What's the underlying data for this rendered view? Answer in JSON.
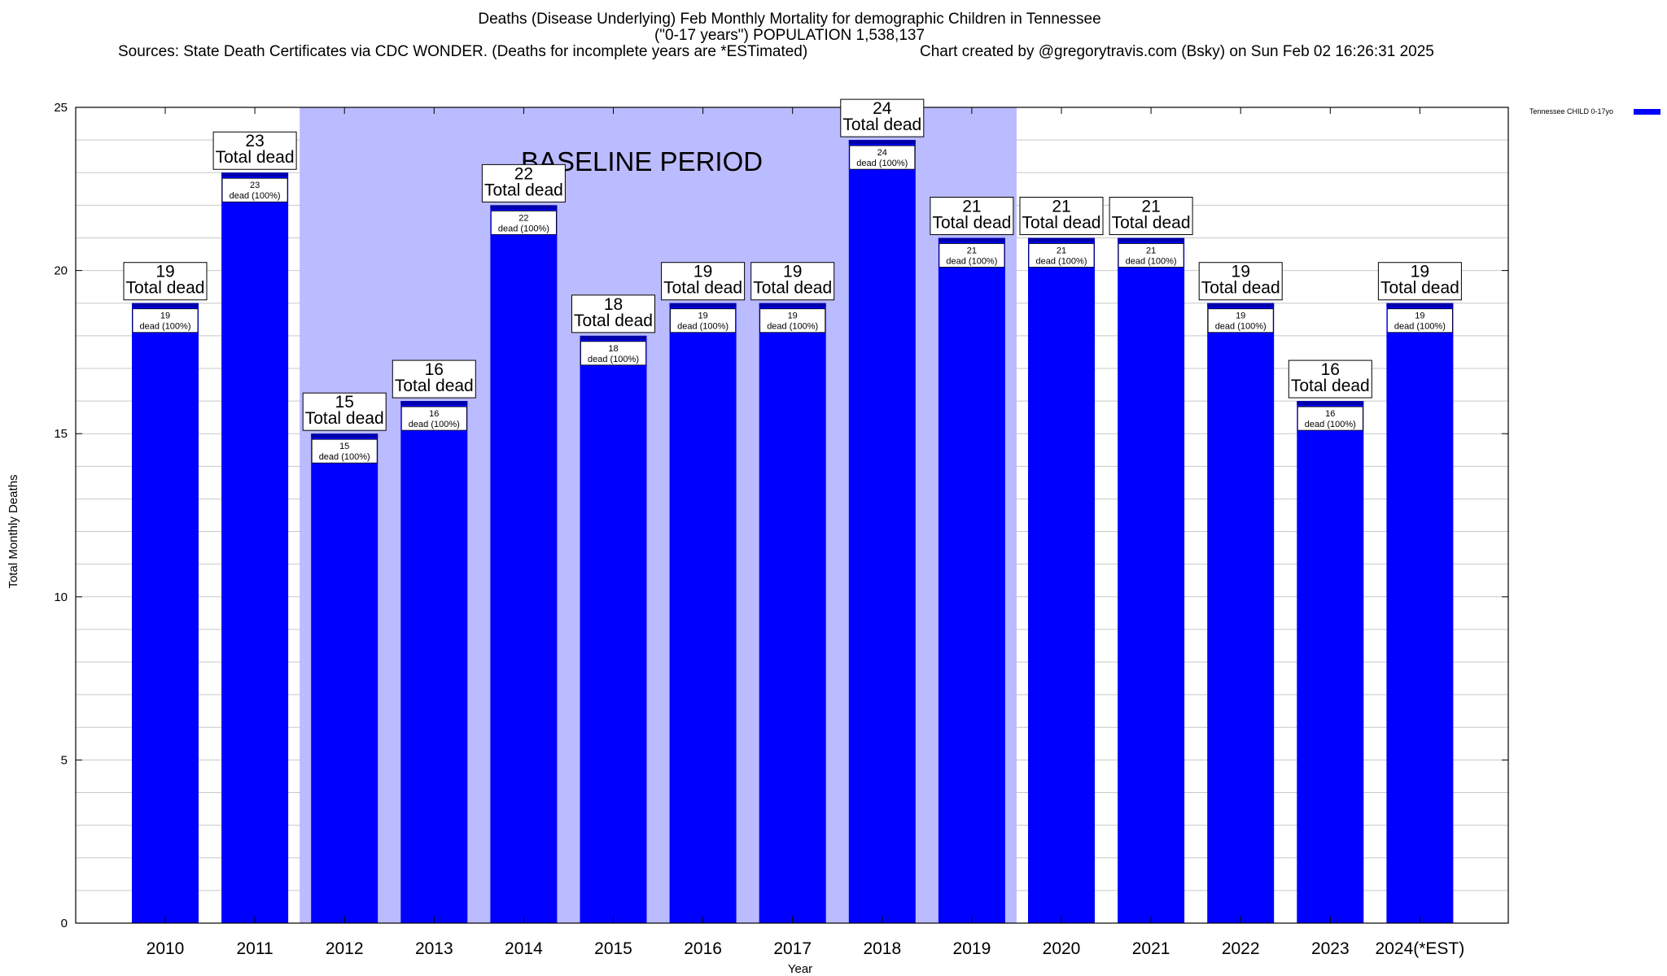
{
  "titles": {
    "line1": "Deaths (Disease Underlying) Feb Monthly Mortality for demographic Children in Tennessee",
    "line2": "(\"0-17 years\") POPULATION 1,538,137",
    "sources": "Sources: State Death Certificates via CDC WONDER. (Deaths for incomplete years are *ESTimated)",
    "credit": "Chart created by @gregorytravis.com (Bsky) on Sun Feb 02 16:26:31 2025"
  },
  "chart_data": {
    "type": "bar",
    "xlabel": "Year",
    "ylabel": "Total Monthly Deaths",
    "ylim": [
      0,
      25
    ],
    "yticks": [
      0,
      5,
      10,
      15,
      20,
      25
    ],
    "grid": true,
    "legend_position": "top-right",
    "categories": [
      "2010",
      "2011",
      "2012",
      "2013",
      "2014",
      "2015",
      "2016",
      "2017",
      "2018",
      "2019",
      "2020",
      "2021",
      "2022",
      "2023",
      "2024(*EST)"
    ],
    "series": [
      {
        "name": "Tennessee CHILD 0-17yo",
        "color": "#0000ff",
        "values": [
          19,
          23,
          15,
          16,
          22,
          18,
          19,
          19,
          24,
          21,
          21,
          21,
          19,
          16,
          19
        ]
      }
    ],
    "total_label": "Total dead",
    "inner_labels": [
      "19\ndead (100%)",
      "23\ndead (100%)",
      "15\ndead (100%)",
      "16\ndead (100%)",
      "22\ndead (100%)",
      "18\ndead (100%)",
      "19\ndead (100%)",
      "19\ndead (100%)",
      "24\ndead (100%)",
      "21\ndead (100%)",
      "21\ndead (100%)",
      "21\ndead (100%)",
      "19\ndead (100%)",
      "16\ndead (100%)",
      "19\ndead (100%)"
    ],
    "baseline": {
      "label": "BASELINE PERIOD",
      "from": "2012",
      "to": "2019",
      "color": "#bbbbff"
    },
    "bar_color": "#0000ff",
    "bar_top_color": "#0000aa"
  }
}
